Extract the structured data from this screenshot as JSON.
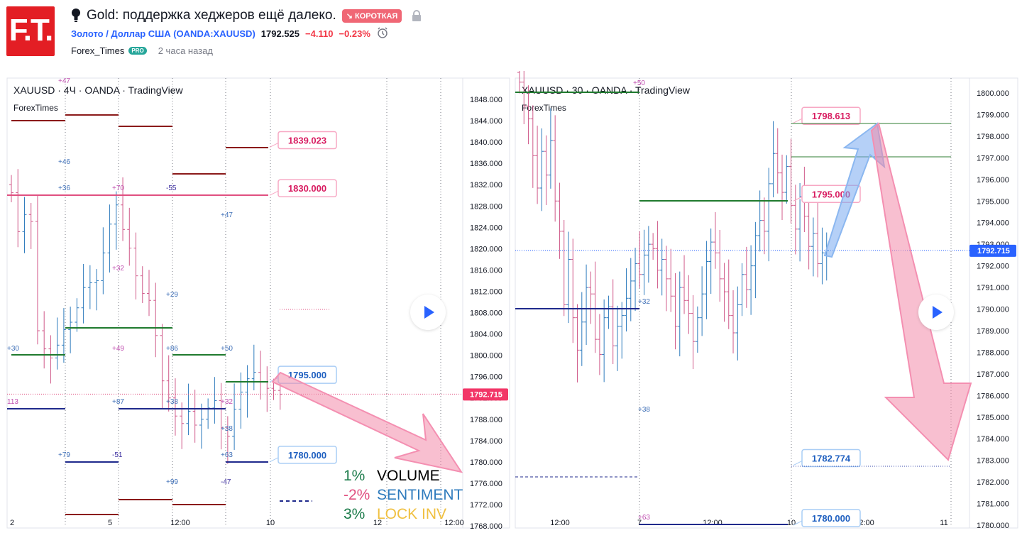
{
  "header": {
    "title": "Gold: поддержка хеджеров ещё далеко.",
    "direction_badge": "↘ КОРОТКАЯ",
    "symbol_link": "Золото / Доллар США (OANDA:XAUUSD)",
    "price": "1792.525",
    "change": "−4.110",
    "change_pct": "−0.23%",
    "author": "Forex_Times",
    "pro_badge": "PRO",
    "time_ago": "2 часа назад",
    "logo_text": "F.T.",
    "icons": [
      "lightbulb-icon",
      "lock-icon",
      "alarm-icon",
      "play-icon"
    ]
  },
  "chart_data": [
    {
      "type": "candlestick",
      "symbol": "XAUUSD",
      "title": "XAUUSD · 4Ч · OANDA · TradingView",
      "subtitle": "ForexTimes",
      "y_range": [
        1768,
        1850
      ],
      "y_ticks": [
        "1848.000",
        "1844.000",
        "1840.000",
        "1836.000",
        "1832.000",
        "1828.000",
        "1824.000",
        "1820.000",
        "1816.000",
        "1812.000",
        "1808.000",
        "1804.000",
        "1800.000",
        "1796.000",
        "1792.000",
        "1788.000",
        "1784.000",
        "1780.000",
        "1776.000",
        "1772.000",
        "1768.000"
      ],
      "x_ticks": [
        "2",
        "5",
        "12:00",
        "10",
        "12",
        "12:00"
      ],
      "last_price_label": "1792.715",
      "last_price": 1792.715,
      "callouts": [
        {
          "text": "1839.023",
          "value": 1839.023,
          "color": "#e91e63"
        },
        {
          "text": "1830.000",
          "value": 1830.0,
          "color": "#e91e63"
        },
        {
          "text": "1795.000",
          "value": 1795.0,
          "color": "#2962ff"
        },
        {
          "text": "1780.000",
          "value": 1780.0,
          "color": "#2962ff"
        }
      ],
      "closes": [
        1830.5,
        1823.2,
        1826.4,
        1825.1,
        1804.6,
        1801.2,
        1799.5,
        1801.9,
        1804.8,
        1806.2,
        1808.9,
        1812.7,
        1813.6,
        1814.0,
        1819.2,
        1824.6,
        1828.2,
        1823.6,
        1820.1,
        1814.9,
        1811.6,
        1810.3,
        1803.7,
        1795.2,
        1792.0,
        1788.6,
        1787.2,
        1789.5,
        1786.9,
        1788.0,
        1790.1,
        1791.5,
        1786.4,
        1784.8,
        1789.9,
        1793.1,
        1795.6,
        1796.8,
        1795.0,
        1793.8,
        1793.4,
        1792.7
      ],
      "legend": [
        {
          "pct": "1%",
          "label": "VOLUME",
          "pct_color": "#1b7b4a",
          "label_color": "#000000"
        },
        {
          "pct": "-2%",
          "label": "SENTIMENT",
          "pct_color": "#e05080",
          "label_color": "#2e7bbd"
        },
        {
          "pct": "3%",
          "label": "LOCK INV",
          "pct_color": "#1b7b4a",
          "label_color": "#f0c040"
        }
      ],
      "level_tags": [
        "+47",
        "+46",
        "+36",
        "+70",
        "-55",
        "+47",
        "+32",
        "+29",
        "+30",
        "+49",
        "+86",
        "+50",
        "113",
        "+87",
        "+38",
        "+32",
        "+38",
        "+79",
        "-51",
        "+63",
        "+99",
        "-47"
      ]
    },
    {
      "type": "candlestick",
      "symbol": "XAUUSD",
      "title": "XAUUSD · 30 · OANDA · TradingView",
      "subtitle": "ForexTimes",
      "y_range": [
        1780,
        1800.3
      ],
      "y_ticks": [
        "1800.000",
        "1799.000",
        "1798.000",
        "1797.000",
        "1796.000",
        "1795.000",
        "1794.000",
        "1793.000",
        "1792.000",
        "1791.000",
        "1790.000",
        "1789.000",
        "1788.000",
        "1787.000",
        "1786.000",
        "1785.000",
        "1784.000",
        "1783.000",
        "1782.000",
        "1781.000",
        "1780.000"
      ],
      "x_ticks": [
        "12:00",
        "7",
        "12:00",
        "10",
        "12:00",
        "11"
      ],
      "last_price_label": "1792.715",
      "last_price": 1792.715,
      "callouts": [
        {
          "text": "1798.613",
          "value": 1798.613,
          "color": "#e91e63"
        },
        {
          "text": "1795.000",
          "value": 1795.0,
          "color": "#e91e63"
        },
        {
          "text": "1782.774",
          "value": 1782.774,
          "color": "#2962ff"
        },
        {
          "text": "1780.000",
          "value": 1780.0,
          "color": "#2962ff"
        }
      ],
      "closes": [
        1800.5,
        1799.4,
        1798.8,
        1797.1,
        1795.6,
        1797.3,
        1796.2,
        1797.8,
        1795.0,
        1793.6,
        1790.2,
        1792.3,
        1789.6,
        1788.1,
        1789.4,
        1791.0,
        1790.7,
        1788.6,
        1787.9,
        1789.6,
        1790.1,
        1788.3,
        1789.2,
        1789.7,
        1790.5,
        1791.3,
        1792.1,
        1791.6,
        1792.5,
        1793.0,
        1792.8,
        1791.8,
        1792.3,
        1791.4,
        1790.6,
        1789.2,
        1791.0,
        1790.4,
        1789.8,
        1788.5,
        1789.6,
        1790.7,
        1792.2,
        1793.1,
        1792.6,
        1791.4,
        1790.8,
        1789.7,
        1788.9,
        1790.2,
        1791.6,
        1790.9,
        1792.0,
        1793.4,
        1794.1,
        1793.6,
        1795.8,
        1797.2,
        1796.3,
        1795.4,
        1796.6,
        1794.8,
        1793.7,
        1795.2,
        1794.3,
        1792.9,
        1793.5,
        1792.1,
        1792.6,
        1792.7
      ],
      "level_tags": [
        "+50",
        "+32",
        "+38",
        "+63"
      ]
    }
  ]
}
